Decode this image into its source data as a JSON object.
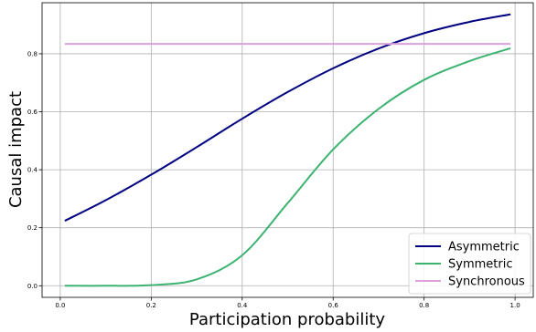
{
  "chart_data": {
    "type": "line",
    "xlabel": "Participation probability",
    "ylabel": "Causal impact",
    "xlim": [
      -0.04,
      1.04
    ],
    "ylim": [
      -0.04,
      0.976
    ],
    "xticks": [
      0.0,
      0.2,
      0.4,
      0.6,
      0.8,
      1.0
    ],
    "xtick_labels": [
      "0.0",
      "0.2",
      "0.4",
      "0.6",
      "0.8",
      "1.0"
    ],
    "yticks": [
      0.0,
      0.2,
      0.4,
      0.6,
      0.8
    ],
    "ytick_labels": [
      "0.0",
      "0.2",
      "0.4",
      "0.6",
      "0.8"
    ],
    "grid": true,
    "legend_position": "bottom-right",
    "x": [
      0.01,
      0.1,
      0.2,
      0.3,
      0.4,
      0.5,
      0.6,
      0.7,
      0.8,
      0.9,
      0.99
    ],
    "series": [
      {
        "name": "Asymmetric",
        "color": "#000080",
        "values": [
          0.224,
          0.295,
          0.383,
          0.478,
          0.576,
          0.668,
          0.75,
          0.818,
          0.871,
          0.91,
          0.936
        ]
      },
      {
        "name": "Symmetric",
        "color": "#3cb371",
        "values": [
          0.0,
          0.0,
          0.002,
          0.022,
          0.105,
          0.285,
          0.47,
          0.61,
          0.71,
          0.775,
          0.819
        ]
      },
      {
        "name": "Synchronous",
        "color": "#dda0dd",
        "values": [
          0.834,
          0.834,
          0.834,
          0.834,
          0.834,
          0.834,
          0.834,
          0.834,
          0.834,
          0.834,
          0.834
        ]
      }
    ]
  }
}
